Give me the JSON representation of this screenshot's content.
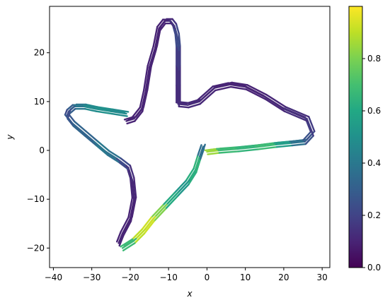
{
  "chart_data": {
    "type": "line",
    "title": "",
    "xlabel": "x",
    "ylabel": "y",
    "xlim": [
      -41,
      32
    ],
    "ylim": [
      -24,
      29.5
    ],
    "xticks": [
      -40,
      -30,
      -20,
      -10,
      0,
      10,
      20,
      30
    ],
    "yticks": [
      -20,
      -10,
      0,
      10,
      20
    ],
    "grid": false,
    "legend": "none",
    "colormap": "viridis",
    "colorbar": {
      "range": [
        0.0,
        1.0
      ],
      "ticks": [
        0.0,
        0.2,
        0.4,
        0.6,
        0.8
      ],
      "tick_labels": [
        "0.0",
        "0.2",
        "0.4",
        "0.6",
        "0.8"
      ]
    },
    "series": [
      {
        "points": [
          [
            -1,
            0.8
          ],
          [
            -2,
            -1.5
          ],
          [
            -3,
            -4
          ],
          [
            -5,
            -6.5
          ],
          [
            -8,
            -9
          ],
          [
            -11,
            -11.5
          ],
          [
            -14,
            -14
          ],
          [
            -16.5,
            -16.5
          ],
          [
            -19,
            -18.5
          ],
          [
            -22,
            -20
          ]
        ],
        "c": [
          0.12,
          0.6,
          0.7,
          0.55,
          0.5,
          0.72,
          0.9,
          0.95,
          0.85,
          0.5
        ]
      },
      {
        "points": [
          [
            0,
            -0.3
          ],
          [
            3,
            0
          ],
          [
            8,
            0.3
          ],
          [
            13,
            0.7
          ],
          [
            18,
            1.2
          ],
          [
            22,
            1.5
          ],
          [
            25.5,
            1.8
          ],
          [
            27.5,
            3.5
          ],
          [
            26,
            6.5
          ],
          [
            20,
            8.5
          ],
          [
            15,
            11
          ],
          [
            10,
            13
          ],
          [
            6,
            13.5
          ],
          [
            2,
            12.8
          ],
          [
            -2,
            10
          ],
          [
            -5,
            9.3
          ],
          [
            -7.5,
            9.5
          ]
        ],
        "c": [
          0.95,
          0.75,
          0.6,
          0.7,
          0.65,
          0.45,
          0.3,
          0.2,
          0.15,
          0.12,
          0.1,
          0.1,
          0.1,
          0.1,
          0.12,
          0.12,
          0.12
        ]
      },
      {
        "points": [
          [
            -7.5,
            9.5
          ],
          [
            -7.5,
            13
          ],
          [
            -7.5,
            17
          ],
          [
            -7.5,
            21
          ],
          [
            -7.8,
            23.5
          ],
          [
            -8.5,
            25.5
          ],
          [
            -9.5,
            26.5
          ],
          [
            -11,
            26.5
          ],
          [
            -12.5,
            25
          ],
          [
            -13.5,
            21
          ],
          [
            -15,
            17
          ],
          [
            -16,
            12
          ],
          [
            -17,
            8.5
          ],
          [
            -19,
            6.5
          ],
          [
            -21,
            6
          ]
        ],
        "c": [
          0.12,
          0.13,
          0.15,
          0.2,
          0.25,
          0.18,
          0.12,
          0.1,
          0.1,
          0.1,
          0.1,
          0.1,
          0.1,
          0.1,
          0.1
        ]
      },
      {
        "points": [
          [
            -21,
            7.5
          ],
          [
            -25,
            8
          ],
          [
            -29,
            8.5
          ],
          [
            -32,
            9
          ],
          [
            -34.5,
            9
          ],
          [
            -36,
            8
          ],
          [
            -36.5,
            7
          ],
          [
            -35,
            5.5
          ],
          [
            -32,
            3.5
          ],
          [
            -29,
            1.5
          ],
          [
            -26,
            -0.5
          ],
          [
            -23,
            -2
          ],
          [
            -20.5,
            -3.5
          ],
          [
            -19.5,
            -6
          ],
          [
            -19,
            -10
          ],
          [
            -20,
            -14
          ],
          [
            -22,
            -17
          ],
          [
            -23,
            -19
          ]
        ],
        "c": [
          0.45,
          0.5,
          0.5,
          0.45,
          0.35,
          0.25,
          0.2,
          0.35,
          0.3,
          0.35,
          0.45,
          0.3,
          0.15,
          0.12,
          0.1,
          0.1,
          0.1,
          0.1
        ]
      }
    ]
  }
}
